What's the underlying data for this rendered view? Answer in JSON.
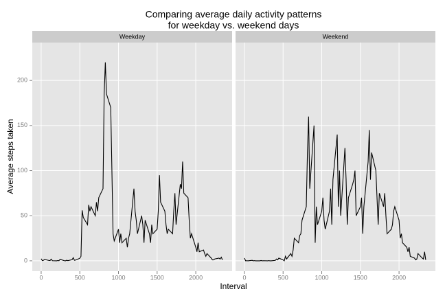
{
  "chart_data": {
    "type": "line",
    "title": [
      "Comparing average daily activity patterns",
      "for weekday vs. weekend days"
    ],
    "xlabel": "Interval",
    "ylabel": "Average steps taken",
    "facet": true,
    "grid": true,
    "color": "#000000",
    "xlim": [
      -115,
      2470
    ],
    "ylim": [
      -11.5,
      242
    ],
    "xticks": [
      0,
      500,
      1000,
      1500,
      2000
    ],
    "yticks": [
      0,
      50,
      100,
      150,
      200
    ],
    "x": [
      0,
      15,
      30,
      45,
      100,
      115,
      130,
      145,
      200,
      215,
      230,
      245,
      300,
      315,
      330,
      345,
      400,
      415,
      430,
      445,
      500,
      515,
      530,
      545,
      600,
      615,
      630,
      645,
      700,
      715,
      730,
      745,
      800,
      815,
      830,
      845,
      900,
      915,
      930,
      945,
      1000,
      1015,
      1030,
      1045,
      1100,
      1115,
      1130,
      1145,
      1200,
      1215,
      1230,
      1245,
      1300,
      1315,
      1330,
      1345,
      1400,
      1415,
      1430,
      1445,
      1500,
      1515,
      1530,
      1545,
      1600,
      1615,
      1630,
      1645,
      1700,
      1715,
      1730,
      1745,
      1800,
      1815,
      1830,
      1845,
      1900,
      1915,
      1930,
      1945,
      2000,
      2015,
      2030,
      2045,
      2100,
      2115,
      2130,
      2145,
      2200,
      2215,
      2230,
      2245,
      2300,
      2315,
      2330,
      2345
    ],
    "series": [
      {
        "name": "Weekday",
        "values": [
          2.3,
          0.2,
          0.6,
          1.5,
          0.4,
          0.3,
          1.8,
          0.1,
          0,
          0.3,
          0.1,
          1.6,
          0.1,
          0,
          0.6,
          0.2,
          1.2,
          3.5,
          0.6,
          0.8,
          2.8,
          5,
          56,
          48,
          40,
          62,
          55,
          60,
          50,
          65,
          55,
          70,
          80,
          185,
          220,
          185,
          170,
          100,
          30,
          22,
          35,
          20,
          30,
          20,
          25,
          15,
          25,
          30,
          80,
          55,
          45,
          30,
          50,
          40,
          20,
          45,
          30,
          20,
          40,
          30,
          35,
          55,
          95,
          65,
          55,
          40,
          30,
          35,
          30,
          55,
          75,
          40,
          85,
          80,
          110,
          75,
          70,
          45,
          25,
          30,
          15,
          10,
          20,
          10,
          12,
          8,
          5,
          8,
          3,
          1,
          1,
          2,
          3,
          2,
          4,
          1
        ]
      },
      {
        "name": "Weekend",
        "values": [
          3,
          0,
          0.1,
          0,
          0.5,
          0,
          0.2,
          0,
          0,
          0.3,
          0,
          0.1,
          0,
          0.2,
          0,
          0,
          0.5,
          2,
          1,
          3,
          1,
          0,
          5,
          2,
          8,
          5,
          12,
          25,
          20,
          28,
          30,
          45,
          60,
          120,
          160,
          80,
          150,
          20,
          60,
          40,
          55,
          70,
          45,
          35,
          55,
          80,
          40,
          90,
          140,
          60,
          100,
          50,
          125,
          90,
          40,
          70,
          85,
          90,
          100,
          50,
          60,
          70,
          30,
          60,
          110,
          145,
          90,
          120,
          100,
          70,
          40,
          75,
          60,
          75,
          50,
          30,
          35,
          40,
          55,
          60,
          45,
          25,
          30,
          20,
          15,
          10,
          15,
          5,
          3,
          1,
          2,
          8,
          3,
          2,
          10,
          1
        ]
      }
    ]
  }
}
